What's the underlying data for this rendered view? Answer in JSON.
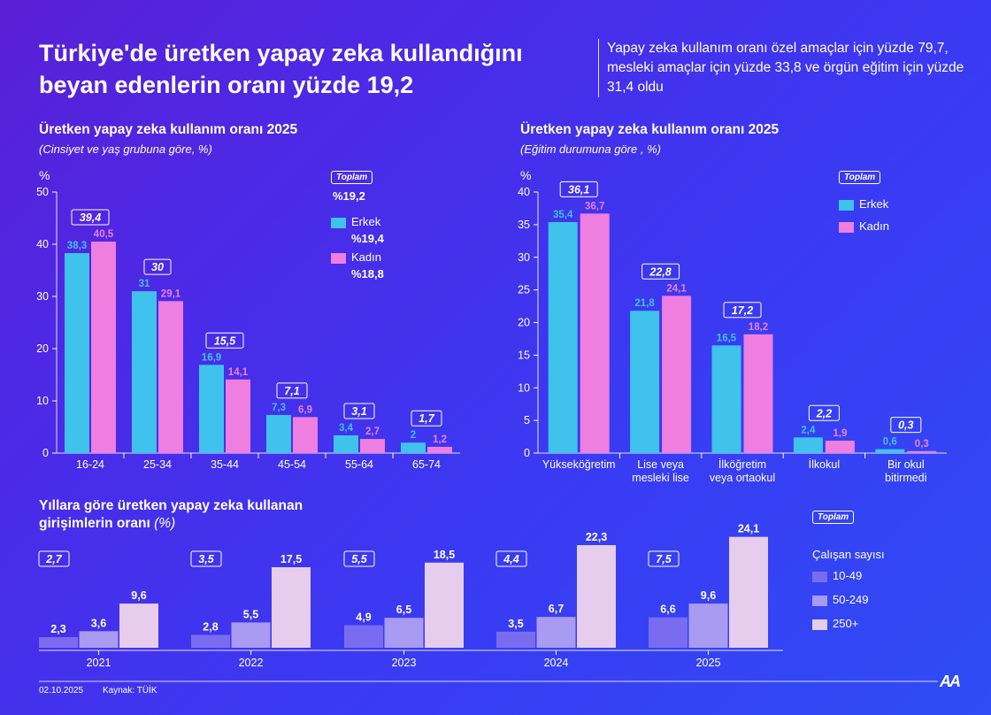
{
  "title": "Türkiye'de üretken yapay zeka kullandığını beyan edenlerin oranı yüzde 19,2",
  "note": "Yapay zeka kullanım oranı özel amaçlar için yüzde 79,7, mesleki amaçlar için yüzde 33,8 ve örgün eğitim için yüzde 31,4 oldu",
  "colors": {
    "erkek": "#3fc3ec",
    "kadin": "#ee7fe0",
    "small": "#7a6cf0",
    "medium": "#a99af2",
    "large": "#e6cdee"
  },
  "left_panel": {
    "title": "Üretken yapay zeka kullanım oranı 2025",
    "subtitle": "(Cinsiyet ve yaş grubuna göre, %)",
    "legend": {
      "toplam_label": "Toplam",
      "toplam_value": "%19,2",
      "erkek_label": "Erkek",
      "erkek_value": "%19,4",
      "kadin_label": "Kadın",
      "kadin_value": "%18,8"
    }
  },
  "right_panel": {
    "title": "Üretken yapay zeka kullanım oranı 2025",
    "subtitle": "(Eğitim durumuna göre , %)",
    "legend": {
      "toplam_label": "Toplam",
      "erkek_label": "Erkek",
      "kadin_label": "Kadın"
    }
  },
  "bottom_panel": {
    "title_line1": "Yıllara göre üretken yapay zeka kullanan",
    "title_line2": "girişimlerin oranı",
    "title_suffix": "(%)",
    "legend": {
      "toplam_label": "Toplam",
      "heading": "Çalışan sayısı",
      "items": [
        "10-49",
        "50-249",
        "250+"
      ]
    }
  },
  "footer": {
    "date": "02.10.2025",
    "source": "Kaynak: TÜİK",
    "logo": "AA"
  },
  "chart_data": [
    {
      "type": "bar",
      "title": "Üretken yapay zeka kullanım oranı 2025",
      "subtitle": "(Cinsiyet ve yaş grubuna göre, %)",
      "ylabel": "%",
      "ylim": [
        0,
        50
      ],
      "yticks": [
        0,
        10,
        20,
        30,
        40,
        50
      ],
      "categories": [
        "16-24",
        "25-34",
        "35-44",
        "45-54",
        "55-64",
        "65-74"
      ],
      "series": [
        {
          "name": "Erkek",
          "values": [
            38.3,
            31,
            16.9,
            7.3,
            3.4,
            2
          ]
        },
        {
          "name": "Kadın",
          "values": [
            40.5,
            29.1,
            14.1,
            6.9,
            2.7,
            1.2
          ]
        }
      ],
      "totals": [
        39.4,
        30,
        15.5,
        7.1,
        3.1,
        1.7
      ],
      "value_labels": {
        "Erkek": [
          "38,3",
          "31",
          "16,9",
          "7,3",
          "3,4",
          "2"
        ],
        "Kadın": [
          "40,5",
          "29,1",
          "14,1",
          "6,9",
          "2,7",
          "1,2"
        ],
        "Toplam": [
          "39,4",
          "30",
          "15,5",
          "7,1",
          "3,1",
          "1,7"
        ]
      }
    },
    {
      "type": "bar",
      "title": "Üretken yapay zeka kullanım oranı 2025",
      "subtitle": "(Eğitim durumuna göre , %)",
      "ylabel": "%",
      "ylim": [
        0,
        40
      ],
      "yticks": [
        0,
        5,
        10,
        15,
        20,
        25,
        30,
        35,
        40
      ],
      "categories": [
        [
          "Yükseköğretim"
        ],
        [
          "Lise veya",
          "mesleki lise"
        ],
        [
          "İlköğretim",
          "veya ortaokul"
        ],
        [
          "İlkokul"
        ],
        [
          "Bir okul",
          "bitirmedi"
        ]
      ],
      "series": [
        {
          "name": "Erkek",
          "values": [
            35.4,
            21.8,
            16.5,
            2.4,
            0.6
          ]
        },
        {
          "name": "Kadın",
          "values": [
            36.7,
            24.1,
            18.2,
            1.9,
            0.3
          ]
        }
      ],
      "totals": [
        36.1,
        22.8,
        17.2,
        2.2,
        0.3
      ],
      "value_labels": {
        "Erkek": [
          "35,4",
          "21,8",
          "16,5",
          "2,4",
          "0,6"
        ],
        "Kadın": [
          "36,7",
          "24,1",
          "18,2",
          "1,9",
          "0,3"
        ],
        "Toplam": [
          "36,1",
          "22,8",
          "17,2",
          "2,2",
          "0,3"
        ]
      }
    },
    {
      "type": "bar",
      "title": "Yıllara göre üretken yapay zeka kullanan girişimlerin oranı (%)",
      "categories": [
        "2021",
        "2022",
        "2023",
        "2024",
        "2025"
      ],
      "series": [
        {
          "name": "10-49",
          "values": [
            2.3,
            2.8,
            4.9,
            3.5,
            6.6
          ]
        },
        {
          "name": "50-249",
          "values": [
            3.6,
            5.5,
            6.5,
            6.7,
            9.6
          ]
        },
        {
          "name": "250+",
          "values": [
            9.6,
            17.5,
            18.5,
            22.3,
            24.1
          ]
        }
      ],
      "totals": [
        2.7,
        3.5,
        5.5,
        4.4,
        7.5
      ],
      "value_labels": {
        "10-49": [
          "2,3",
          "2,8",
          "4,9",
          "3,5",
          "6,6"
        ],
        "50-249": [
          "3,6",
          "5,5",
          "6,5",
          "6,7",
          "9,6"
        ],
        "250+": [
          "9,6",
          "17,5",
          "18,5",
          "22,3",
          "24,1"
        ],
        "Toplam": [
          "2,7",
          "3,5",
          "5,5",
          "4,4",
          "7,5"
        ]
      }
    }
  ]
}
